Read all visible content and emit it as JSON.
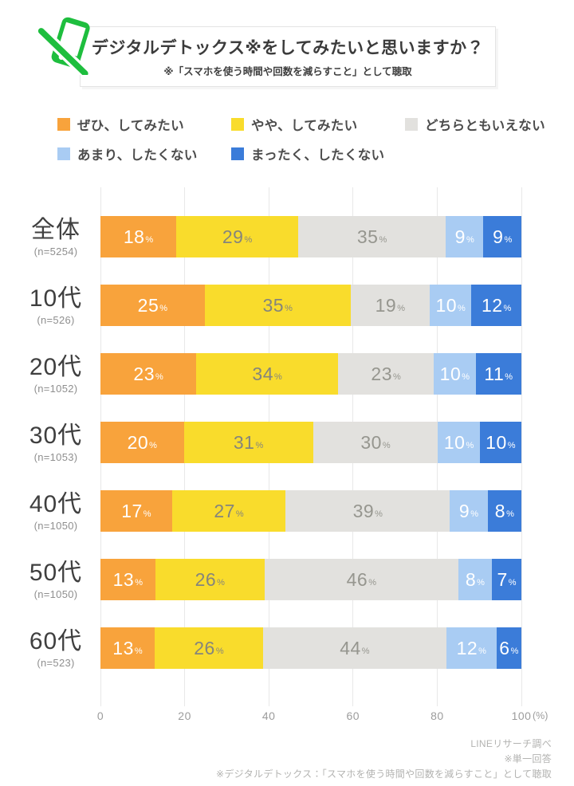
{
  "header": {
    "icon": "no-smartphone-icon",
    "icon_color": "#1ebe3e",
    "title": "デジタルデトックス※をしてみたいと思いますか？",
    "subtitle": "※「スマホを使う時間や回数を減らすこと」として聴取"
  },
  "legend": [
    {
      "label": "ぜひ、してみたい",
      "color": "#f8a33c"
    },
    {
      "label": "やや、してみたい",
      "color": "#f9dc2c"
    },
    {
      "label": "どちらともいえない",
      "color": "#e2e1de"
    },
    {
      "label": "あまり、したくない",
      "color": "#a9ccf3"
    },
    {
      "label": "まったく、したくない",
      "color": "#3b7cd9"
    }
  ],
  "chart_data": {
    "type": "bar",
    "stacked": true,
    "orientation": "horizontal",
    "grid": true,
    "categories": [
      "全体",
      "10代",
      "20代",
      "30代",
      "40代",
      "50代",
      "60代"
    ],
    "sample_sizes": [
      "(n=5254)",
      "(n=526)",
      "(n=1052)",
      "(n=1053)",
      "(n=1050)",
      "(n=1050)",
      "(n=523)"
    ],
    "series": [
      {
        "name": "ぜひ、してみたい",
        "color": "#f8a33c",
        "label_color": "#ffffff",
        "values": [
          18,
          25,
          23,
          20,
          17,
          13,
          13
        ]
      },
      {
        "name": "やや、してみたい",
        "color": "#f9dc2c",
        "label_color": "#85857c",
        "values": [
          29,
          35,
          34,
          31,
          27,
          26,
          26
        ]
      },
      {
        "name": "どちらともいえない",
        "color": "#e2e1de",
        "label_color": "#96968f",
        "values": [
          35,
          19,
          23,
          30,
          39,
          46,
          44
        ]
      },
      {
        "name": "あまり、したくない",
        "color": "#a9ccf3",
        "label_color": "#ffffff",
        "values": [
          9,
          10,
          10,
          10,
          9,
          8,
          12
        ]
      },
      {
        "name": "まったく、したくない",
        "color": "#3b7cd9",
        "label_color": "#ffffff",
        "values": [
          9,
          12,
          11,
          10,
          8,
          7,
          6
        ]
      }
    ],
    "x_ticks": [
      0,
      20,
      40,
      60,
      80,
      100
    ],
    "xlim": [
      0,
      100
    ],
    "x_unit": "(%)",
    "value_suffix": "%"
  },
  "footer": {
    "lines": [
      "LINEリサーチ調べ",
      "※単一回答",
      "※デジタルデトックス：「スマホを使う時間や回数を減らすこと」として聴取"
    ]
  }
}
